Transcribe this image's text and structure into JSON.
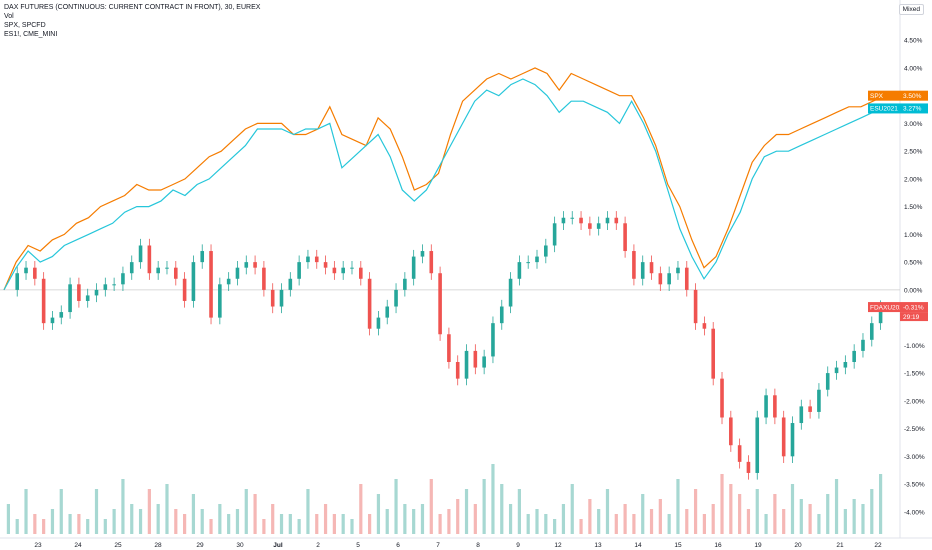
{
  "legend": {
    "main_series": "DAX FUTURES (CONTINUOUS: CURRENT CONTRACT IN FRONT), 30, EUREX",
    "volume": "Vol",
    "spx": "SPX, SPCFD",
    "es": "ES1!, CME_MINI"
  },
  "toolbar": {
    "mode_label": "Mixed"
  },
  "colors": {
    "up": "#26a69a",
    "down": "#ef5350",
    "spx_line": "#f57c00",
    "es_line": "#26c6da",
    "vol_up": "#a7d8d2",
    "vol_down": "#f5b7b5",
    "grid": "#eeeeee",
    "zero_line": "#cccccc"
  },
  "price_tags": {
    "spx": {
      "label": "SPX",
      "value": "3.50%",
      "color": "#f57c00"
    },
    "es": {
      "label": "ESU2021",
      "value": "3.27%",
      "color": "#00bcd4"
    },
    "fdax": {
      "label": "FDAXU2021",
      "value": "-0.31%",
      "sub": "29:19",
      "color": "#ef5350"
    }
  },
  "chart_data": {
    "type": "line",
    "title": "DAX FUTURES (CONTINUOUS: CURRENT CONTRACT IN FRONT), 30, EUREX",
    "xlabel": "",
    "ylabel": "",
    "y_unit": "%",
    "ylim": [
      -4.4,
      4.9
    ],
    "y_ticks": [
      "4.50%",
      "4.00%",
      "3.50%",
      "3.00%",
      "2.50%",
      "2.00%",
      "1.50%",
      "1.00%",
      "0.50%",
      "0.00%",
      "-0.50%",
      "-1.00%",
      "-1.50%",
      "-2.00%",
      "-2.50%",
      "-3.00%",
      "-3.50%",
      "-4.00%"
    ],
    "x_ticks": [
      "23",
      "24",
      "25",
      "28",
      "29",
      "30",
      "Jul",
      "2",
      "5",
      "6",
      "7",
      "8",
      "9",
      "12",
      "13",
      "14",
      "15",
      "16",
      "19",
      "20",
      "21",
      "22"
    ],
    "grid": false,
    "series": [
      {
        "name": "SPX, SPCFD",
        "values": [
          0.0,
          0.5,
          0.8,
          0.7,
          0.9,
          1.0,
          1.2,
          1.3,
          1.5,
          1.6,
          1.7,
          1.9,
          1.8,
          1.8,
          1.9,
          2.0,
          2.2,
          2.4,
          2.5,
          2.7,
          2.9,
          3.0,
          3.0,
          3.0,
          2.8,
          2.8,
          2.9,
          3.3,
          2.8,
          2.7,
          2.6,
          3.1,
          2.9,
          2.4,
          1.8,
          1.9,
          2.1,
          2.8,
          3.4,
          3.6,
          3.8,
          3.9,
          3.8,
          3.9,
          4.0,
          3.9,
          3.6,
          3.9,
          3.8,
          3.7,
          3.6,
          3.5,
          3.5,
          3.1,
          2.6,
          1.9,
          1.5,
          0.9,
          0.4,
          0.6,
          1.1,
          1.7,
          2.3,
          2.6,
          2.8,
          2.8,
          2.9,
          3.0,
          3.1,
          3.2,
          3.3,
          3.3,
          3.4,
          3.5
        ]
      },
      {
        "name": "ES1!, CME_MINI",
        "values": [
          0.0,
          0.4,
          0.7,
          0.5,
          0.6,
          0.8,
          0.9,
          1.0,
          1.1,
          1.2,
          1.4,
          1.5,
          1.5,
          1.6,
          1.8,
          1.7,
          1.9,
          2.0,
          2.2,
          2.4,
          2.6,
          2.9,
          2.9,
          2.9,
          2.8,
          2.9,
          2.9,
          3.0,
          2.2,
          2.4,
          2.6,
          2.8,
          2.4,
          1.8,
          1.6,
          1.8,
          2.2,
          2.6,
          3.0,
          3.4,
          3.6,
          3.5,
          3.7,
          3.8,
          3.7,
          3.5,
          3.2,
          3.4,
          3.4,
          3.3,
          3.2,
          3.0,
          3.4,
          3.0,
          2.5,
          1.8,
          1.1,
          0.6,
          0.2,
          0.5,
          1.0,
          1.4,
          2.0,
          2.4,
          2.5,
          2.5,
          2.6,
          2.7,
          2.8,
          2.9,
          3.0,
          3.1,
          3.2,
          3.27
        ]
      },
      {
        "name": "DAX FUTURES (CONTINUOUS: CURRENT CONTRACT IN FRONT), 30, EUREX",
        "type": "candlestick",
        "values": [
          0.0,
          0.3,
          0.4,
          0.2,
          -0.6,
          -0.5,
          -0.4,
          0.1,
          -0.2,
          -0.1,
          0.0,
          0.1,
          0.1,
          0.3,
          0.5,
          0.8,
          0.3,
          0.4,
          0.4,
          0.2,
          -0.2,
          0.5,
          0.7,
          -0.5,
          0.1,
          0.2,
          0.4,
          0.5,
          0.4,
          0.0,
          -0.3,
          0.0,
          0.2,
          0.5,
          0.6,
          0.5,
          0.4,
          0.3,
          0.4,
          0.4,
          0.2,
          -0.7,
          -0.5,
          -0.3,
          0.0,
          0.2,
          0.6,
          0.7,
          0.3,
          -0.8,
          -1.3,
          -1.6,
          -1.1,
          -1.4,
          -1.2,
          -0.6,
          -0.3,
          0.2,
          0.5,
          0.5,
          0.6,
          0.8,
          1.2,
          1.3,
          1.3,
          1.2,
          1.1,
          1.2,
          1.3,
          1.2,
          0.7,
          0.2,
          0.5,
          0.3,
          0.1,
          0.3,
          0.4,
          0.0,
          -0.6,
          -0.7,
          -1.6,
          -2.3,
          -2.8,
          -3.1,
          -3.3,
          -2.3,
          -1.9,
          -2.3,
          -3.0,
          -2.4,
          -2.1,
          -2.2,
          -1.8,
          -1.5,
          -1.4,
          -1.3,
          -1.1,
          -0.9,
          -0.6,
          -0.31
        ]
      }
    ],
    "volume": [
      6,
      3,
      9,
      4,
      3,
      5,
      9,
      4,
      4,
      3,
      9,
      3,
      5,
      11,
      6,
      5,
      9,
      6,
      10,
      5,
      4,
      8,
      5,
      3,
      6,
      4,
      5,
      9,
      8,
      3,
      6,
      4,
      4,
      3,
      9,
      4,
      6,
      4,
      4,
      3,
      10,
      4,
      8,
      5,
      11,
      6,
      5,
      6,
      11,
      4,
      5,
      7,
      9,
      6,
      11,
      14,
      10,
      6,
      9,
      4,
      5,
      4,
      3,
      6,
      10,
      3,
      7,
      5,
      9,
      4,
      6,
      4,
      8,
      5,
      7,
      4,
      11,
      5,
      9,
      4,
      6,
      12,
      10,
      8,
      5,
      9,
      4,
      8,
      5,
      10,
      7,
      6,
      4,
      8,
      11,
      5,
      7,
      6,
      9,
      12
    ]
  }
}
